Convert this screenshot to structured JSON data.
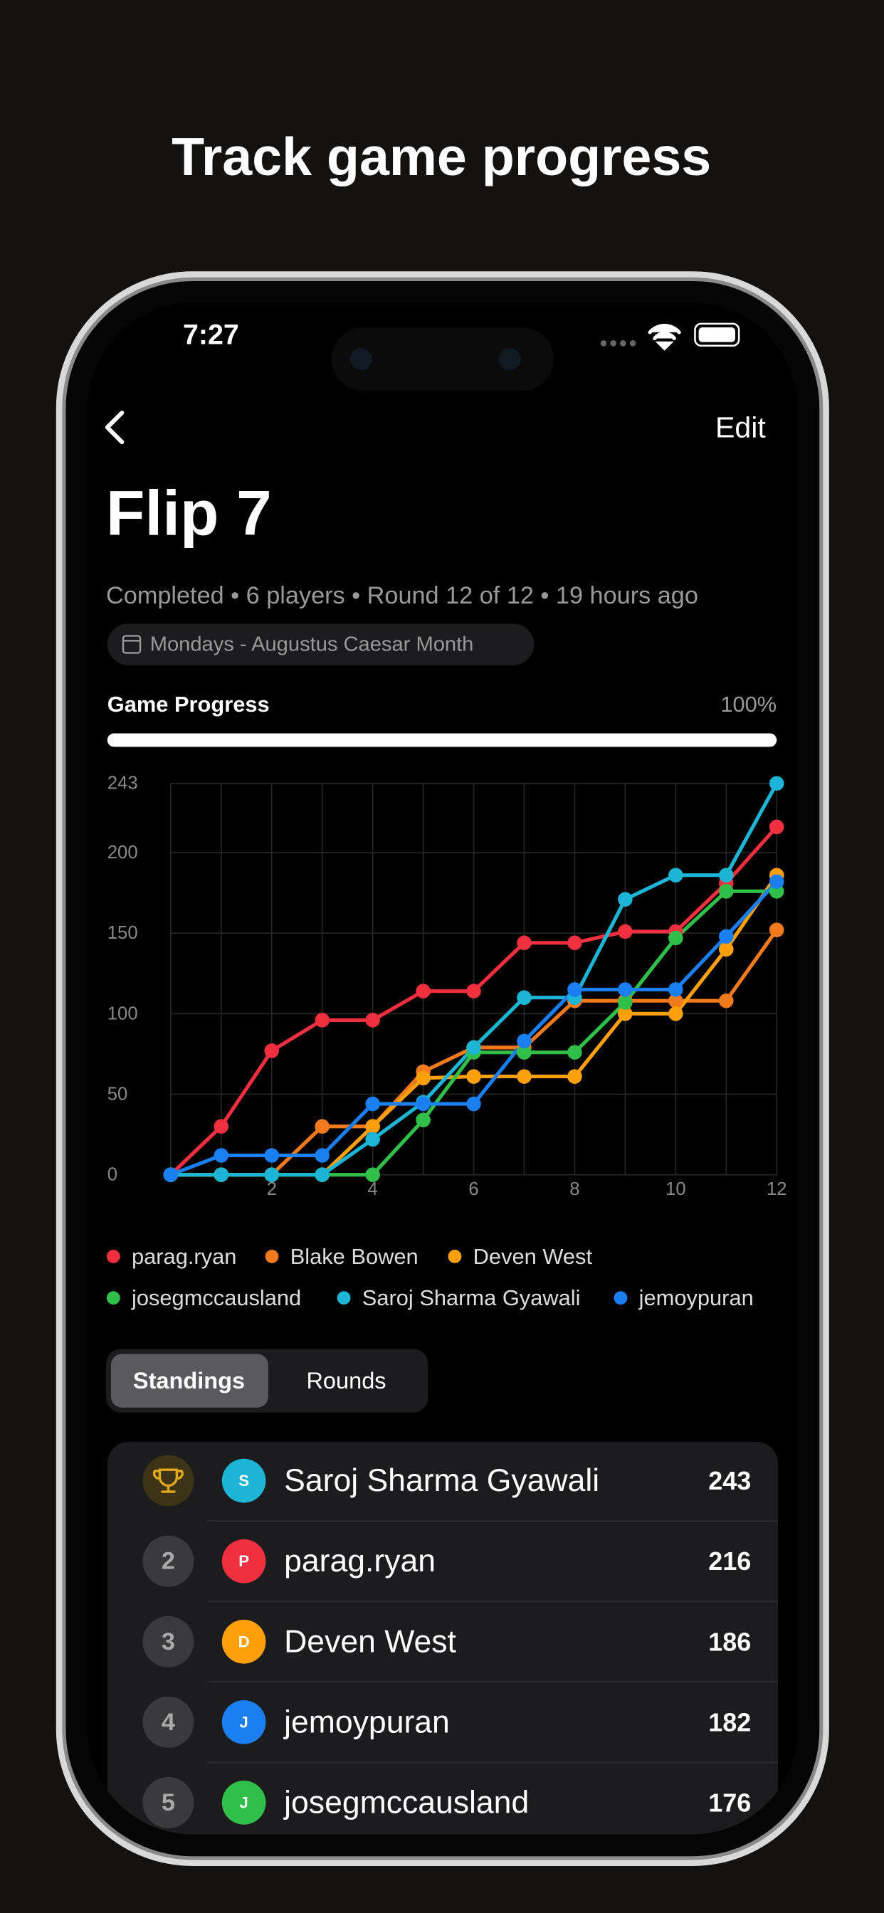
{
  "headline": "Track game progress",
  "status_bar": {
    "time": "7:27"
  },
  "nav": {
    "edit": "Edit"
  },
  "title": "Flip 7",
  "subtitle": "Completed • 6 players • Round 12 of 12 • 19 hours ago",
  "tag": "Mondays - Augustus Caesar Month",
  "progress": {
    "label": "Game Progress",
    "value": 100,
    "value_label": "100%"
  },
  "chart_data": {
    "type": "line",
    "x": [
      0,
      1,
      2,
      3,
      4,
      5,
      6,
      7,
      8,
      9,
      10,
      11,
      12
    ],
    "xlim": [
      0,
      12
    ],
    "xticks": [
      2,
      4,
      6,
      8,
      10,
      12
    ],
    "ylim": [
      0,
      243
    ],
    "yticks": [
      0,
      50,
      100,
      150,
      200,
      243
    ],
    "grid": true,
    "series": [
      {
        "name": "parag.ryan",
        "color": "#f0303f",
        "values": [
          0,
          30,
          77,
          96,
          96,
          114,
          114,
          144,
          144,
          151,
          151,
          181,
          216
        ]
      },
      {
        "name": "Blake Bowen",
        "color": "#f07a1c",
        "values": [
          0,
          0,
          0,
          30,
          30,
          64,
          79,
          79,
          108,
          108,
          108,
          108,
          152
        ]
      },
      {
        "name": "Deven West",
        "color": "#ff9f0a",
        "values": [
          0,
          0,
          0,
          0,
          30,
          60,
          61,
          61,
          61,
          100,
          100,
          140,
          186
        ]
      },
      {
        "name": "josegmccausland",
        "color": "#30c04a",
        "values": [
          0,
          0,
          0,
          0,
          0,
          34,
          76,
          76,
          76,
          107,
          147,
          176,
          176
        ]
      },
      {
        "name": "Saroj Sharma Gyawali",
        "color": "#1db5d5",
        "values": [
          0,
          0,
          0,
          0,
          22,
          45,
          79,
          110,
          110,
          171,
          186,
          186,
          243
        ]
      },
      {
        "name": "jemoypuran",
        "color": "#1a7ff0",
        "values": [
          0,
          12,
          12,
          12,
          44,
          44,
          44,
          83,
          115,
          115,
          115,
          148,
          182
        ]
      }
    ]
  },
  "tabs": [
    "Standings",
    "Rounds"
  ],
  "standings": [
    {
      "initial": "S",
      "name": "Saroj Sharma Gyawali",
      "score": 243
    },
    {
      "rank": 2,
      "initial": "P",
      "name": "parag.ryan",
      "score": 216
    },
    {
      "rank": 3,
      "initial": "D",
      "name": "Deven West",
      "score": 186
    },
    {
      "rank": 4,
      "initial": "J",
      "name": "jemoypuran",
      "score": 182
    },
    {
      "rank": 5,
      "initial": "J",
      "name": "josegmccausland",
      "score": 176
    }
  ]
}
